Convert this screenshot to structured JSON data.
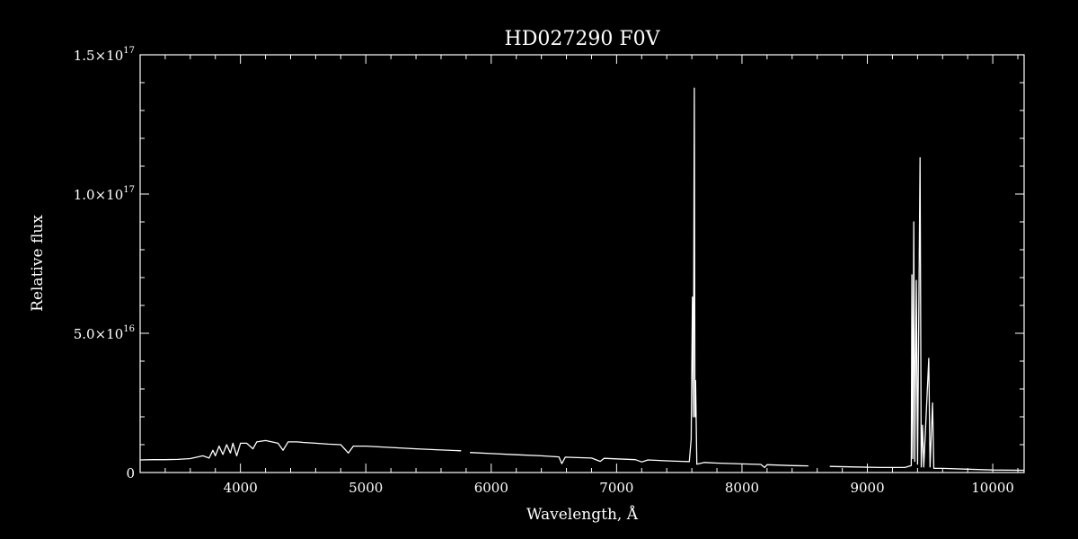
{
  "chart_data": {
    "type": "line",
    "title": "HD027290  F0V",
    "xlabel": "Wavelength, Å",
    "ylabel": "Relative flux",
    "xlim": [
      3200,
      10250
    ],
    "ylim": [
      0,
      1.5e+17
    ],
    "grid": false,
    "colors": {
      "background": "#000000",
      "foreground": "#ffffff"
    },
    "x_ticks": [
      {
        "value": 4000,
        "label": "4000"
      },
      {
        "value": 5000,
        "label": "5000"
      },
      {
        "value": 6000,
        "label": "6000"
      },
      {
        "value": 7000,
        "label": "7000"
      },
      {
        "value": 8000,
        "label": "8000"
      },
      {
        "value": 9000,
        "label": "9000"
      },
      {
        "value": 10000,
        "label": "10000"
      }
    ],
    "y_ticks": [
      {
        "value": 0,
        "mantissa": "0",
        "exponent": ""
      },
      {
        "value": 5e+16,
        "mantissa": "5.0×10",
        "exponent": "16"
      },
      {
        "value": 1e+17,
        "mantissa": "1.0×10",
        "exponent": "17"
      },
      {
        "value": 1.5e+17,
        "mantissa": "1.5×10",
        "exponent": "17"
      }
    ],
    "series": [
      {
        "segments": [
          [
            [
              3200,
              4500000000000000.0
            ],
            [
              3300,
              4600000000000000.0
            ],
            [
              3400,
              4600000000000000.0
            ],
            [
              3500,
              4700000000000000.0
            ],
            [
              3600,
              5000000000000000.0
            ],
            [
              3700,
              6000000000000000.0
            ],
            [
              3750,
              5200000000000000.0
            ],
            [
              3780,
              8000000000000000.0
            ],
            [
              3800,
              6000000000000000.0
            ],
            [
              3830,
              9500000000000000.0
            ],
            [
              3860,
              6500000000000000.0
            ],
            [
              3890,
              1e+16
            ],
            [
              3920,
              7000000000000000.0
            ],
            [
              3940,
              1.05e+16
            ],
            [
              3970,
              6000000000000000.0
            ],
            [
              4000,
              1.05e+16
            ],
            [
              4050,
              1.05e+16
            ],
            [
              4100,
              8500000000000000.0
            ],
            [
              4130,
              1.1e+16
            ],
            [
              4200,
              1.15e+16
            ],
            [
              4250,
              1.1e+16
            ],
            [
              4300,
              1.05e+16
            ],
            [
              4340,
              8000000000000000.0
            ],
            [
              4380,
              1.1e+16
            ],
            [
              4450,
              1.1e+16
            ],
            [
              4500,
              1.08e+16
            ],
            [
              4600,
              1.05e+16
            ],
            [
              4700,
              1.02e+16
            ],
            [
              4800,
              1e+16
            ],
            [
              4861,
              7000000000000000.0
            ],
            [
              4900,
              9500000000000000.0
            ],
            [
              5000,
              9500000000000000.0
            ],
            [
              5200,
              9000000000000000.0
            ],
            [
              5400,
              8500000000000000.0
            ],
            [
              5600,
              8100000000000000.0
            ],
            [
              5760,
              7800000000000000.0
            ]
          ],
          [
            [
              5830,
              7200000000000000.0
            ],
            [
              6000,
              6800000000000000.0
            ],
            [
              6200,
              6400000000000000.0
            ],
            [
              6400,
              6000000000000000.0
            ],
            [
              6540,
              5600000000000000.0
            ],
            [
              6563,
              3200000000000000.0
            ],
            [
              6590,
              5500000000000000.0
            ],
            [
              6800,
              5200000000000000.0
            ],
            [
              6870,
              4000000000000000.0
            ],
            [
              6900,
              5100000000000000.0
            ],
            [
              7000,
              4900000000000000.0
            ],
            [
              7150,
              4600000000000000.0
            ],
            [
              7200,
              3800000000000000.0
            ],
            [
              7250,
              4500000000000000.0
            ],
            [
              7400,
              4200000000000000.0
            ],
            [
              7580,
              3900000000000000.0
            ],
            [
              7595,
              1.2e+16
            ],
            [
              7605,
              6.3e+16
            ],
            [
              7612,
              2e+16
            ],
            [
              7620,
              1.38e+17
            ],
            [
              7625,
              2e+16
            ],
            [
              7630,
              3.3e+16
            ],
            [
              7640,
              3000000000000000.0
            ],
            [
              7700,
              3600000000000000.0
            ],
            [
              7800,
              3400000000000000.0
            ],
            [
              8000,
              3100000000000000.0
            ],
            [
              8150,
              2900000000000000.0
            ],
            [
              8180,
              1800000000000000.0
            ],
            [
              8200,
              2800000000000000.0
            ],
            [
              8400,
              2500000000000000.0
            ],
            [
              8530,
              2400000000000000.0
            ]
          ],
          [
            [
              8700,
              2200000000000000.0
            ],
            [
              8900,
              2000000000000000.0
            ],
            [
              9100,
              1800000000000000.0
            ],
            [
              9300,
              1800000000000000.0
            ],
            [
              9350,
              2500000000000000.0
            ],
            [
              9355,
              7.1e+16
            ],
            [
              9362,
              5000000000000000.0
            ],
            [
              9370,
              9e+16
            ],
            [
              9378,
              4000000000000000.0
            ],
            [
              9390,
              6.9e+16
            ],
            [
              9400,
              3000000000000000.0
            ],
            [
              9420,
              1.13e+17
            ],
            [
              9430,
              2000000000000000.0
            ],
            [
              9440,
              1.7e+16
            ],
            [
              9450,
              2000000000000000.0
            ],
            [
              9490,
              4.1e+16
            ],
            [
              9500,
              2000000000000000.0
            ],
            [
              9520,
              2.5e+16
            ],
            [
              9530,
              1500000000000000.0
            ],
            [
              9600,
              1500000000000000.0
            ],
            [
              9800,
              1200000000000000.0
            ],
            [
              10000,
              900000000000000.0
            ],
            [
              10250,
              800000000000000.0
            ]
          ]
        ]
      }
    ]
  }
}
